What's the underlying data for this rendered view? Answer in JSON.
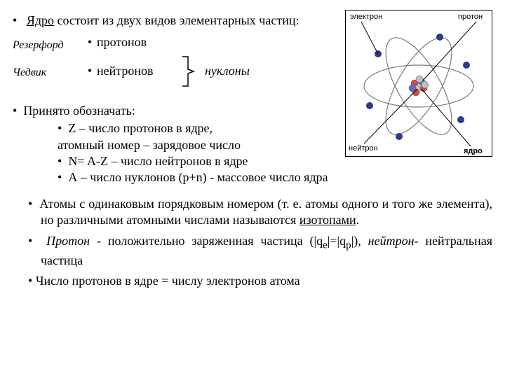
{
  "line1_prefix": "Ядро",
  "line1_rest": " состоит из двух видов элементарных частиц:",
  "attrib": {
    "rutherford": "Резерфорд",
    "chadwick": "Чедвик"
  },
  "particles": {
    "protons": "протонов",
    "neutrons": "нейтронов"
  },
  "nucleons": "нуклоны",
  "sec2_title": "Принято обозначать:",
  "sec2_items": [
    "Z – число протонов в ядре,\nатомный номер – зарядовое число",
    "N= A-Z – число нейтронов в ядре",
    "А – число нуклонов (p+n) - массовое число ядра"
  ],
  "bottom": {
    "p1a": "Атомы с одинаковым порядковым номером (т. е. атомы одного и того же элемента), но различными атомными числами называются ",
    "p1b": "изотопами",
    "p1c": ".",
    "p2_proton": "Протон",
    "p2_a": " - положительно заряженная частица (|q",
    "p2_e": "e",
    "p2_b": "|=|q",
    "p2_p": "p",
    "p2_c": "|), ",
    "p2_neutron": "нейтрон",
    "p2_d": "- нейтральная частица",
    "p3": "Число протонов в ядре = числу электронов атома"
  },
  "diagram": {
    "labels": {
      "electron": "электрон",
      "proton": "протон",
      "neutron": "нейтрон",
      "nucleus": "ядро"
    },
    "colors": {
      "electron": "#2b3a8f",
      "proton_a": "#d44848",
      "proton_b": "#4e6fd6",
      "neutron": "#bfbfbf",
      "orbit": "#7a7a7a",
      "border": "#000000",
      "label": "#000000"
    },
    "label_fontsize": 11
  }
}
